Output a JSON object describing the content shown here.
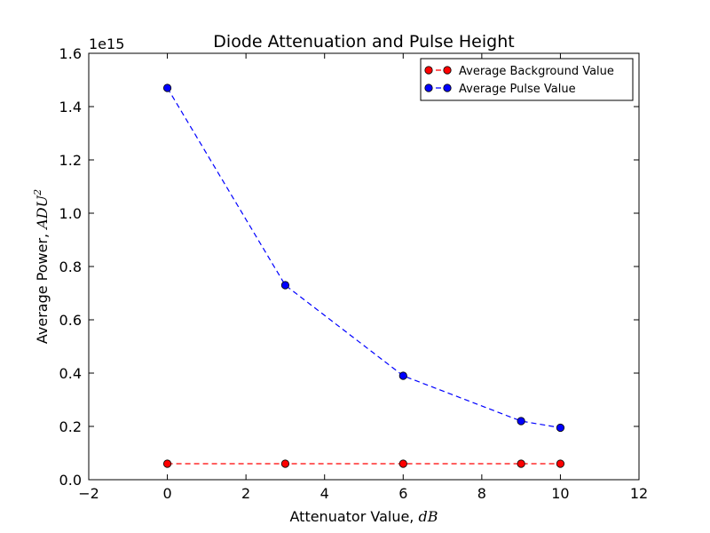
{
  "chart_data": {
    "type": "line",
    "title": "Diode Attenuation and Pulse Height",
    "xlabel": {
      "text": "Attenuator Value, ",
      "math": "dB"
    },
    "ylabel": {
      "text": "Average Power, ",
      "math": "ADU",
      "sup": "2"
    },
    "xlim": [
      -2,
      12
    ],
    "ylim": [
      0.0,
      1.6
    ],
    "y_offset_label": "1e15",
    "x_ticks": [
      -2,
      0,
      2,
      4,
      6,
      8,
      10,
      12
    ],
    "x_tick_labels": [
      "−2",
      "0",
      "2",
      "4",
      "6",
      "8",
      "10",
      "12"
    ],
    "y_ticks": [
      0.0,
      0.2,
      0.4,
      0.6,
      0.8,
      1.0,
      1.2,
      1.4,
      1.6
    ],
    "y_tick_labels": [
      "0.0",
      "0.2",
      "0.4",
      "0.6",
      "0.8",
      "1.0",
      "1.2",
      "1.4",
      "1.6"
    ],
    "grid": false,
    "legend_position": "top-right",
    "series": [
      {
        "name": "Average Background Value",
        "color": "#ff0000",
        "line_style": "dashed",
        "marker": "circle",
        "x": [
          0,
          3,
          6,
          9,
          10
        ],
        "y": [
          0.06,
          0.06,
          0.06,
          0.06,
          0.06
        ]
      },
      {
        "name": "Average Pulse Value",
        "color": "#0000ff",
        "line_style": "dashed",
        "marker": "circle",
        "x": [
          0,
          3,
          6,
          9,
          10
        ],
        "y": [
          1.47,
          0.73,
          0.39,
          0.22,
          0.195
        ]
      }
    ]
  }
}
